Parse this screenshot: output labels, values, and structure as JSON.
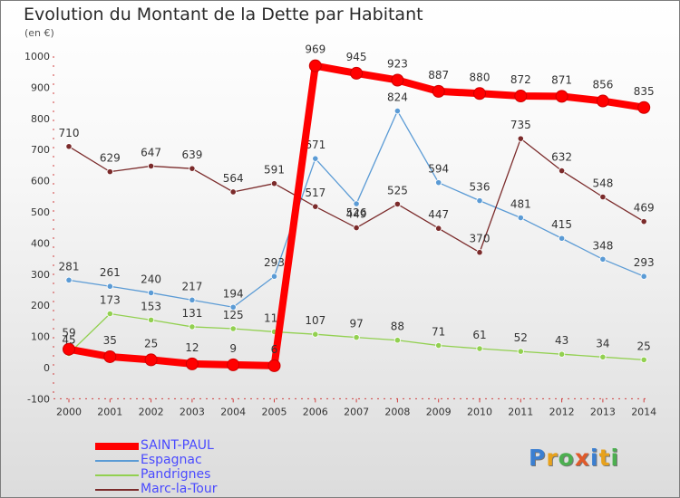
{
  "header": {
    "title": "Evolution du Montant de la Dette par Habitant",
    "unit": "(en €)"
  },
  "logo": {
    "letters": [
      "P",
      "r",
      "o",
      "x",
      "i",
      "t",
      "i"
    ],
    "colors": [
      "#3b7fd1",
      "#e8a21c",
      "#4caf50",
      "#e05a2a",
      "#3b7fd1",
      "#e8a21c",
      "#4caf50"
    ]
  },
  "chart_data": {
    "type": "line",
    "title": "Evolution du Montant de la Dette par Habitant",
    "xlabel": "",
    "ylabel": "(en €)",
    "categories": [
      "2000",
      "2001",
      "2002",
      "2003",
      "2004",
      "2005",
      "2006",
      "2007",
      "2008",
      "2009",
      "2010",
      "2011",
      "2012",
      "2013",
      "2014"
    ],
    "ylim": [
      -100,
      1000
    ],
    "yticks": [
      -100,
      0,
      100,
      200,
      300,
      400,
      500,
      600,
      700,
      800,
      900,
      1000
    ],
    "grid": false,
    "legend_position": "bottom-left",
    "series": [
      {
        "name": "SAINT-PAUL",
        "color": "#ff0000",
        "values": [
          59,
          35,
          25,
          12,
          9,
          6,
          969,
          945,
          923,
          887,
          880,
          872,
          871,
          856,
          835
        ],
        "labels": [
          "59",
          "35",
          "25",
          "12",
          "9",
          "6",
          "969",
          "945",
          "923",
          "887",
          "880",
          "872",
          "871",
          "856",
          "835"
        ]
      },
      {
        "name": "Espagnac",
        "color": "#5b9bd5",
        "values": [
          281,
          261,
          240,
          217,
          194,
          293,
          671,
          526,
          824,
          594,
          536,
          481,
          415,
          348,
          293
        ],
        "labels": [
          "281",
          "261",
          "240",
          "217",
          "194",
          "293",
          "671",
          "526",
          "824",
          "594",
          "536",
          "481",
          "415",
          "348",
          "293"
        ]
      },
      {
        "name": "Pandrignes",
        "color": "#92d050",
        "values": [
          45,
          173,
          153,
          131,
          125,
          115,
          107,
          97,
          88,
          71,
          61,
          52,
          43,
          34,
          25
        ],
        "labels": [
          "45",
          "173",
          "153",
          "131",
          "125",
          "115",
          "107",
          "97",
          "88",
          "71",
          "61",
          "52",
          "43",
          "34",
          "25"
        ]
      },
      {
        "name": "Marc-la-Tour",
        "color": "#7b2b2b",
        "values": [
          710,
          629,
          647,
          639,
          564,
          591,
          517,
          449,
          525,
          447,
          370,
          735,
          632,
          548,
          469
        ],
        "labels": [
          "710",
          "629",
          "647",
          "639",
          "564",
          "591",
          "517",
          "449",
          "525",
          "447",
          "370",
          "735",
          "632",
          "548",
          "469"
        ]
      }
    ]
  }
}
